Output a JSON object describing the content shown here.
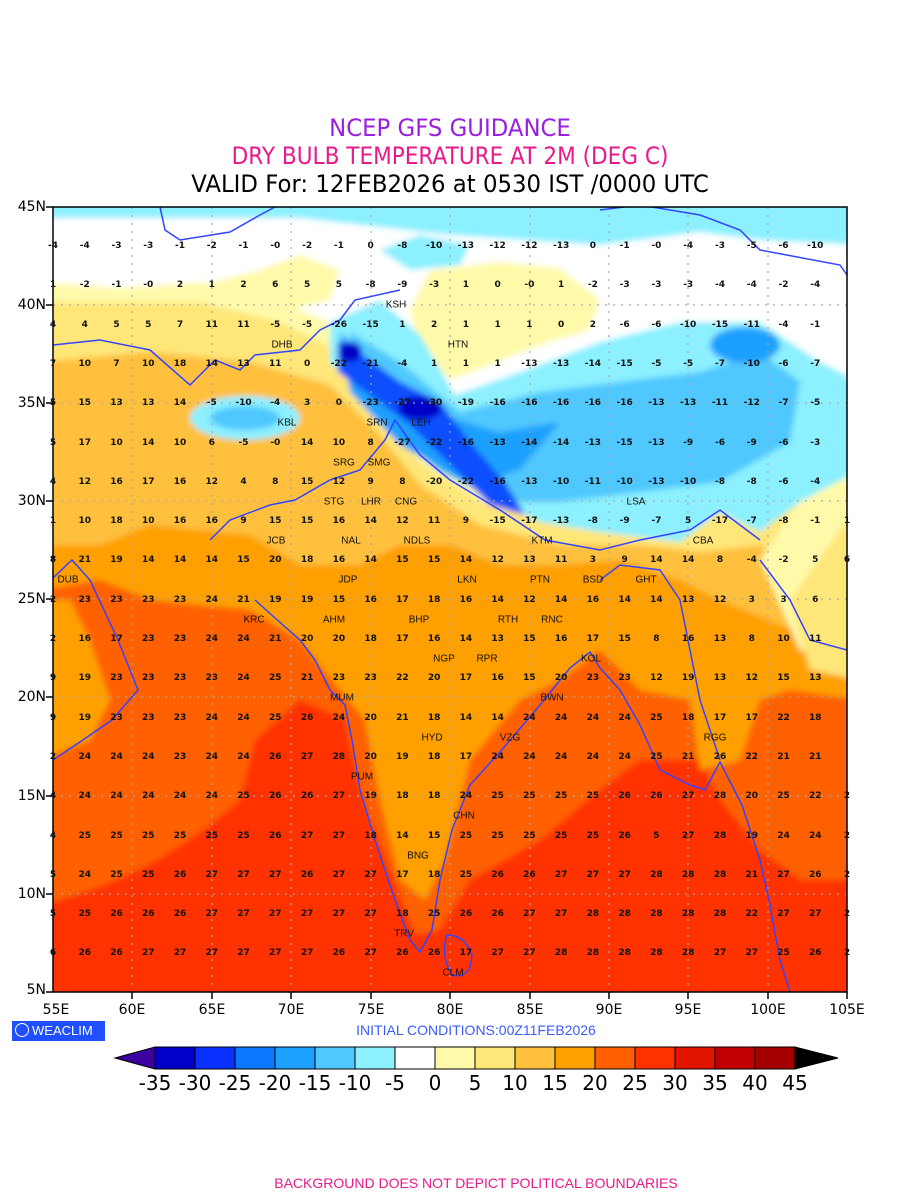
{
  "header": {
    "line1": "NCEP GFS GUIDANCE",
    "line2": "DRY BULB TEMPERATURE AT 2M (DEG C)",
    "line3": "VALID For: 12FEB2026 at 0530 IST /0000 UTC"
  },
  "colors": {
    "title1": "#9a1ee0",
    "title2": "#e8198b",
    "boundary": "#3344ff"
  },
  "axes": {
    "lat_labels": [
      "45N",
      "40N",
      "35N",
      "30N",
      "25N",
      "20N",
      "15N",
      "10N",
      "5N"
    ],
    "lon_labels": [
      "55E",
      "60E",
      "65E",
      "70E",
      "75E",
      "80E",
      "85E",
      "90E",
      "95E",
      "100E",
      "105E"
    ]
  },
  "grid_values": [
    [
      "-4",
      "-4",
      "-3",
      "-3",
      "-1",
      "-2",
      "-1",
      "-0",
      "-2",
      "-1",
      "0",
      "-8",
      "-10",
      "-13",
      "-12",
      "-12",
      "-13",
      "0",
      "-1",
      "-0",
      "-4",
      "-3",
      "-5",
      "-6",
      "-10",
      ""
    ],
    [
      "1",
      "-2",
      "-1",
      "-0",
      "2",
      "1",
      "2",
      "6",
      "5",
      "5",
      "-8",
      "-9",
      "-3",
      "1",
      "0",
      "-0",
      "1",
      "-2",
      "-3",
      "-3",
      "-3",
      "-4",
      "-4",
      "-2",
      "-4",
      ""
    ],
    [
      "4",
      "4",
      "5",
      "5",
      "7",
      "11",
      "11",
      "-5",
      "-5",
      "-26",
      "-15",
      "1",
      "2",
      "1",
      "1",
      "1",
      "0",
      "2",
      "-6",
      "-6",
      "-10",
      "-15",
      "-11",
      "-4",
      "-1",
      ""
    ],
    [
      "7",
      "10",
      "7",
      "10",
      "18",
      "14",
      "13",
      "11",
      "0",
      "-22",
      "-21",
      "-4",
      "1",
      "1",
      "1",
      "-13",
      "-13",
      "-14",
      "-15",
      "-5",
      "-5",
      "-7",
      "-10",
      "-6",
      "-7",
      ""
    ],
    [
      "5",
      "15",
      "13",
      "13",
      "14",
      "-5",
      "-10",
      "-4",
      "3",
      "0",
      "-23",
      "-27",
      "-30",
      "-19",
      "-16",
      "-16",
      "-16",
      "-16",
      "-16",
      "-13",
      "-13",
      "-11",
      "-12",
      "-7",
      "-5",
      ""
    ],
    [
      "5",
      "17",
      "10",
      "14",
      "10",
      "6",
      "-5",
      "-0",
      "14",
      "10",
      "8",
      "-27",
      "-22",
      "-16",
      "-13",
      "-14",
      "-14",
      "-13",
      "-15",
      "-13",
      "-9",
      "-6",
      "-9",
      "-6",
      "-3",
      ""
    ],
    [
      "4",
      "12",
      "16",
      "17",
      "16",
      "12",
      "4",
      "8",
      "15",
      "12",
      "9",
      "8",
      "-20",
      "-22",
      "-16",
      "-13",
      "-10",
      "-11",
      "-10",
      "-13",
      "-10",
      "-8",
      "-8",
      "-6",
      "-4",
      ""
    ],
    [
      "1",
      "10",
      "18",
      "10",
      "16",
      "16",
      "9",
      "15",
      "15",
      "16",
      "14",
      "12",
      "11",
      "9",
      "-15",
      "-17",
      "-13",
      "-8",
      "-9",
      "-7",
      "5",
      "-17",
      "-7",
      "-8",
      "-1",
      "1"
    ],
    [
      "8",
      "21",
      "19",
      "14",
      "14",
      "14",
      "15",
      "20",
      "18",
      "16",
      "14",
      "15",
      "15",
      "14",
      "12",
      "13",
      "11",
      "3",
      "9",
      "14",
      "14",
      "8",
      "-4",
      "-2",
      "5",
      "6"
    ],
    [
      "2",
      "23",
      "23",
      "23",
      "23",
      "24",
      "21",
      "19",
      "19",
      "15",
      "16",
      "17",
      "18",
      "16",
      "14",
      "12",
      "14",
      "16",
      "14",
      "14",
      "13",
      "12",
      "3",
      "3",
      "6",
      ""
    ],
    [
      "2",
      "16",
      "17",
      "23",
      "23",
      "24",
      "24",
      "21",
      "20",
      "20",
      "18",
      "17",
      "16",
      "14",
      "13",
      "15",
      "16",
      "17",
      "15",
      "8",
      "16",
      "13",
      "8",
      "10",
      "11",
      ""
    ],
    [
      "9",
      "19",
      "23",
      "23",
      "23",
      "23",
      "24",
      "25",
      "21",
      "23",
      "23",
      "22",
      "20",
      "17",
      "16",
      "15",
      "20",
      "23",
      "23",
      "12",
      "19",
      "13",
      "12",
      "15",
      "13",
      ""
    ],
    [
      "9",
      "19",
      "23",
      "23",
      "23",
      "24",
      "24",
      "25",
      "26",
      "24",
      "20",
      "21",
      "18",
      "14",
      "14",
      "24",
      "24",
      "24",
      "24",
      "25",
      "18",
      "17",
      "17",
      "22",
      "18",
      ""
    ],
    [
      "2",
      "24",
      "24",
      "24",
      "23",
      "24",
      "24",
      "26",
      "27",
      "28",
      "20",
      "19",
      "18",
      "17",
      "24",
      "24",
      "24",
      "24",
      "24",
      "25",
      "21",
      "26",
      "22",
      "21",
      "21",
      ""
    ],
    [
      "4",
      "24",
      "24",
      "24",
      "24",
      "24",
      "25",
      "26",
      "26",
      "27",
      "19",
      "18",
      "18",
      "24",
      "25",
      "25",
      "25",
      "25",
      "26",
      "26",
      "27",
      "28",
      "20",
      "25",
      "22",
      "2"
    ],
    [
      "4",
      "25",
      "25",
      "25",
      "25",
      "25",
      "25",
      "26",
      "27",
      "27",
      "18",
      "14",
      "15",
      "25",
      "25",
      "25",
      "25",
      "25",
      "26",
      "5",
      "27",
      "28",
      "19",
      "24",
      "24",
      "2"
    ],
    [
      "5",
      "24",
      "25",
      "25",
      "26",
      "27",
      "27",
      "27",
      "26",
      "27",
      "27",
      "17",
      "18",
      "25",
      "26",
      "26",
      "27",
      "27",
      "27",
      "28",
      "28",
      "28",
      "21",
      "27",
      "26",
      "2"
    ],
    [
      "5",
      "25",
      "26",
      "26",
      "26",
      "27",
      "27",
      "27",
      "27",
      "27",
      "27",
      "18",
      "25",
      "26",
      "26",
      "27",
      "27",
      "28",
      "28",
      "28",
      "28",
      "28",
      "22",
      "27",
      "27",
      "2"
    ],
    [
      "6",
      "26",
      "26",
      "27",
      "27",
      "27",
      "27",
      "27",
      "27",
      "26",
      "27",
      "26",
      "26",
      "17",
      "27",
      "27",
      "28",
      "28",
      "28",
      "28",
      "28",
      "27",
      "27",
      "25",
      "26",
      "2"
    ]
  ],
  "cities": [
    "DHB",
    "KSH",
    "HTN",
    "KBL",
    "SRN",
    "LEH",
    "SMG",
    "SRG",
    "LHR",
    "CNG",
    "STG",
    "NDLS",
    "JCB",
    "NAL",
    "KTM",
    "BSD",
    "CBA",
    "LKN",
    "GHT",
    "JDP",
    "PTN",
    "DUB",
    "KRC",
    "RTH",
    "BHP",
    "RNC",
    "AHM",
    "KOL",
    "NGP",
    "RPR",
    "BWN",
    "MUM",
    "HYD",
    "VZG",
    "RGG",
    "PUM",
    "CHN",
    "BNG",
    "TRV",
    "CLM",
    "LSA"
  ],
  "logo": "WEACLIM",
  "initial_conditions": "INITIAL CONDITIONS:00Z11FEB2026",
  "colorbar": {
    "labels": [
      "-35",
      "-30",
      "-25",
      "-20",
      "-15",
      "-10",
      "-5",
      "0",
      "5",
      "10",
      "15",
      "20",
      "25",
      "30",
      "35",
      "40",
      "45"
    ],
    "colors": [
      "#0000c8",
      "#0a32ff",
      "#0a78ff",
      "#1ea0ff",
      "#50c8ff",
      "#8cf0ff",
      "#ffffff",
      "#fffaaa",
      "#ffe678",
      "#ffc03c",
      "#ffa000",
      "#ff6000",
      "#ff3200",
      "#e11400",
      "#c00000",
      "#a50000"
    ],
    "under_color": "#3c00a0",
    "over_color": "#000000"
  },
  "footer": "BACKGROUND DOES NOT DEPICT POLITICAL BOUNDARIES"
}
